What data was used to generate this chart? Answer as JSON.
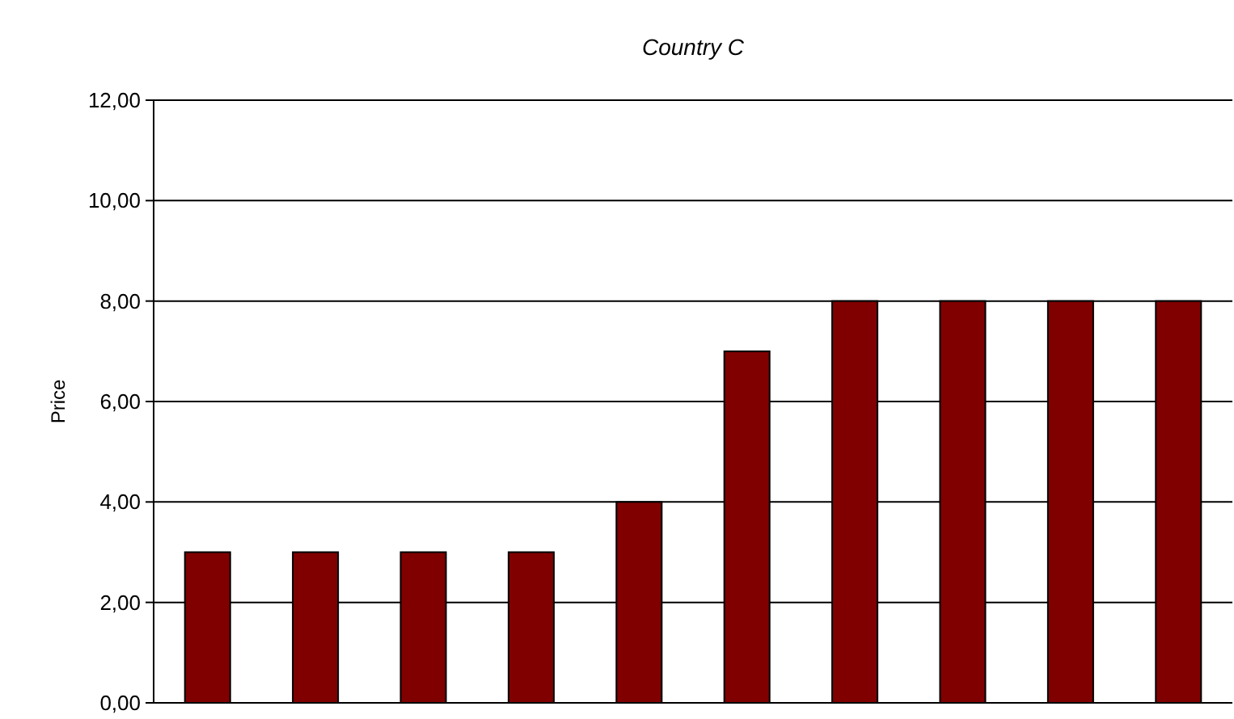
{
  "chart_data": {
    "type": "bar",
    "title": "Country C",
    "ylabel": "Price",
    "categories": [
      null,
      null,
      null,
      null,
      null,
      null,
      null,
      null,
      null,
      null
    ],
    "values": [
      3,
      3,
      3,
      3,
      4,
      7,
      8,
      8,
      8,
      8
    ],
    "color": "#800000",
    "ylim": [
      0,
      12
    ],
    "yticks": [
      {
        "value": 0,
        "label": "0,00"
      },
      {
        "value": 2,
        "label": "2,00"
      },
      {
        "value": 4,
        "label": "4,00"
      },
      {
        "value": 6,
        "label": "6,00"
      },
      {
        "value": 8,
        "label": "8,00"
      },
      {
        "value": 10,
        "label": "10,00"
      },
      {
        "value": 12,
        "label": "12,00"
      }
    ],
    "grid": "y"
  }
}
